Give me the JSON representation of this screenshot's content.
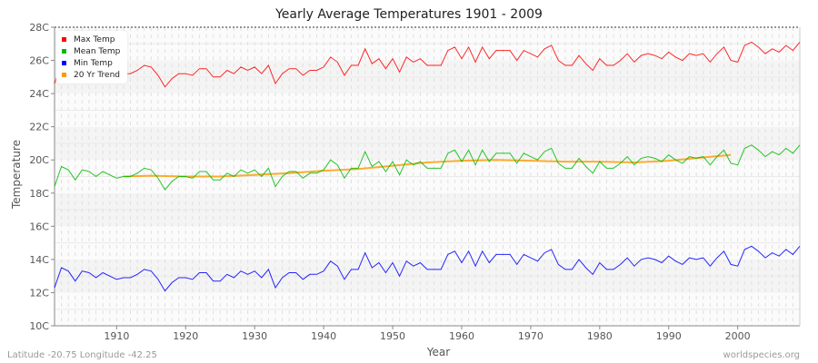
{
  "chart_data": {
    "type": "line",
    "title": "Yearly Average Temperatures 1901 - 2009",
    "xlabel": "Year",
    "ylabel": "Temperature",
    "xlim": [
      1901,
      2009
    ],
    "ylim": [
      10,
      28
    ],
    "x_ticks": [
      "1910",
      "1920",
      "1930",
      "1940",
      "1950",
      "1960",
      "1970",
      "1980",
      "1990",
      "2000"
    ],
    "y_ticks": [
      "10C",
      "12C",
      "14C",
      "16C",
      "18C",
      "20C",
      "22C",
      "24C",
      "26C",
      "28C"
    ],
    "grid": true,
    "legend_position": "top-left",
    "x_start": 1901,
    "series": [
      {
        "name": "Max Temp",
        "color": "#ff0000",
        "values": [
          24.6,
          25.8,
          25.6,
          25.0,
          25.6,
          25.5,
          25.2,
          25.5,
          25.3,
          25.1,
          25.2,
          25.2,
          25.4,
          25.7,
          25.6,
          25.1,
          24.4,
          24.9,
          25.2,
          25.2,
          25.1,
          25.5,
          25.5,
          25.0,
          25.0,
          25.4,
          25.2,
          25.6,
          25.4,
          25.6,
          25.2,
          25.7,
          24.6,
          25.2,
          25.5,
          25.5,
          25.1,
          25.4,
          25.4,
          25.6,
          26.2,
          25.9,
          25.1,
          25.7,
          25.7,
          26.7,
          25.8,
          26.1,
          25.5,
          26.1,
          25.3,
          26.2,
          25.9,
          26.1,
          25.7,
          25.7,
          25.7,
          26.6,
          26.8,
          26.1,
          26.8,
          25.9,
          26.8,
          26.1,
          26.6,
          26.6,
          26.6,
          26.0,
          26.6,
          26.4,
          26.2,
          26.7,
          26.9,
          26.0,
          25.7,
          25.7,
          26.3,
          25.8,
          25.4,
          26.1,
          25.7,
          25.7,
          26.0,
          26.4,
          25.9,
          26.3,
          26.4,
          26.3,
          26.1,
          26.5,
          26.2,
          26.0,
          26.4,
          26.3,
          26.4,
          25.9,
          26.4,
          26.8,
          26.0,
          25.9,
          26.9,
          27.1,
          26.8,
          26.4,
          26.7,
          26.5,
          26.9,
          26.6,
          27.1
        ]
      },
      {
        "name": "Mean Temp",
        "color": "#00bb00",
        "values": [
          18.4,
          19.6,
          19.4,
          18.8,
          19.4,
          19.3,
          19.0,
          19.3,
          19.1,
          18.9,
          19.0,
          19.0,
          19.2,
          19.5,
          19.4,
          18.9,
          18.2,
          18.7,
          19.0,
          19.0,
          18.9,
          19.3,
          19.3,
          18.8,
          18.8,
          19.2,
          19.0,
          19.4,
          19.2,
          19.4,
          19.0,
          19.5,
          18.4,
          19.0,
          19.3,
          19.3,
          18.9,
          19.2,
          19.2,
          19.4,
          20.0,
          19.7,
          18.9,
          19.5,
          19.5,
          20.5,
          19.6,
          19.9,
          19.3,
          19.9,
          19.1,
          20.0,
          19.7,
          19.9,
          19.5,
          19.5,
          19.5,
          20.4,
          20.6,
          19.9,
          20.6,
          19.7,
          20.6,
          19.9,
          20.4,
          20.4,
          20.4,
          19.8,
          20.4,
          20.2,
          20.0,
          20.5,
          20.7,
          19.8,
          19.5,
          19.5,
          20.1,
          19.6,
          19.2,
          19.9,
          19.5,
          19.5,
          19.8,
          20.2,
          19.7,
          20.1,
          20.2,
          20.1,
          19.9,
          20.3,
          20.0,
          19.8,
          20.2,
          20.1,
          20.2,
          19.7,
          20.2,
          20.6,
          19.8,
          19.7,
          20.7,
          20.9,
          20.6,
          20.2,
          20.5,
          20.3,
          20.7,
          20.4,
          20.9
        ]
      },
      {
        "name": "Min Temp",
        "color": "#0000ff",
        "values": [
          12.3,
          13.5,
          13.3,
          12.7,
          13.3,
          13.2,
          12.9,
          13.2,
          13.0,
          12.8,
          12.9,
          12.9,
          13.1,
          13.4,
          13.3,
          12.8,
          12.1,
          12.6,
          12.9,
          12.9,
          12.8,
          13.2,
          13.2,
          12.7,
          12.7,
          13.1,
          12.9,
          13.3,
          13.1,
          13.3,
          12.9,
          13.4,
          12.3,
          12.9,
          13.2,
          13.2,
          12.8,
          13.1,
          13.1,
          13.3,
          13.9,
          13.6,
          12.8,
          13.4,
          13.4,
          14.4,
          13.5,
          13.8,
          13.2,
          13.8,
          13.0,
          13.9,
          13.6,
          13.8,
          13.4,
          13.4,
          13.4,
          14.3,
          14.5,
          13.8,
          14.5,
          13.6,
          14.5,
          13.8,
          14.3,
          14.3,
          14.3,
          13.7,
          14.3,
          14.1,
          13.9,
          14.4,
          14.6,
          13.7,
          13.4,
          13.4,
          14.0,
          13.5,
          13.1,
          13.8,
          13.4,
          13.4,
          13.7,
          14.1,
          13.6,
          14.0,
          14.1,
          14.0,
          13.8,
          14.2,
          13.9,
          13.7,
          14.1,
          14.0,
          14.1,
          13.6,
          14.1,
          14.5,
          13.7,
          13.6,
          14.6,
          14.8,
          14.5,
          14.1,
          14.4,
          14.2,
          14.6,
          14.3,
          14.8
        ]
      },
      {
        "name": "20 Yr Trend",
        "color": "#ff9900",
        "x": [
          1911,
          1915,
          1920,
          1925,
          1930,
          1935,
          1940,
          1945,
          1950,
          1955,
          1960,
          1965,
          1970,
          1975,
          1980,
          1985,
          1990,
          1995,
          1999
        ],
        "values": [
          19.0,
          19.05,
          19.0,
          19.0,
          19.1,
          19.2,
          19.35,
          19.45,
          19.65,
          19.85,
          19.95,
          20.0,
          19.95,
          19.9,
          19.9,
          19.85,
          19.95,
          20.15,
          20.3
        ]
      }
    ]
  },
  "footer": {
    "location": "Latitude -20.75 Longitude -42.25",
    "site": "worldspecies.org"
  }
}
